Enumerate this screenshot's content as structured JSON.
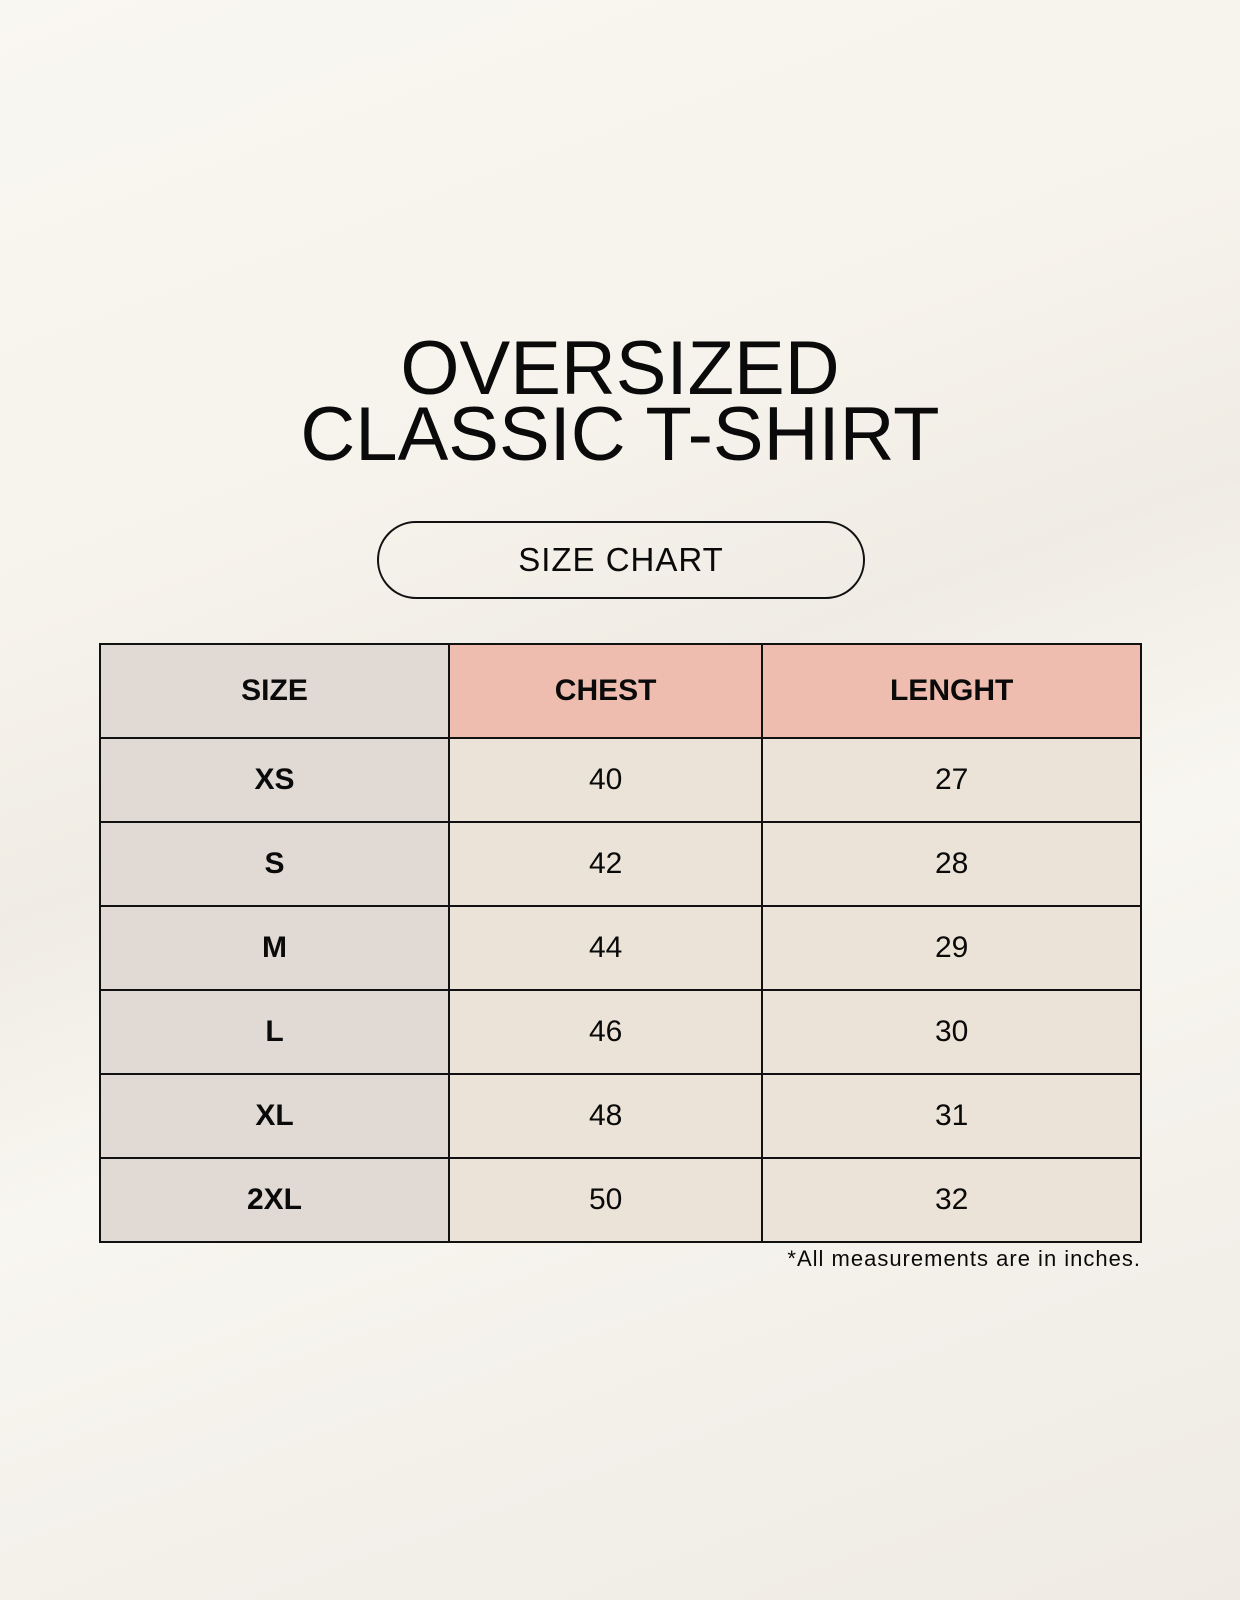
{
  "title": {
    "line1": "OVERSIZED",
    "line2": "CLASSIC T-SHIRT"
  },
  "badge": "SIZE CHART",
  "table": {
    "headers": [
      "SIZE",
      "CHEST",
      "LENGHT"
    ],
    "rows": [
      [
        "XS",
        "40",
        "27"
      ],
      [
        "S",
        "42",
        "28"
      ],
      [
        "M",
        "44",
        "29"
      ],
      [
        "L",
        "46",
        "30"
      ],
      [
        "XL",
        "48",
        "31"
      ],
      [
        "2XL",
        "50",
        "32"
      ]
    ]
  },
  "footnote": "*All measurements are in inches.",
  "colors": {
    "header_accent": "#efbdb0",
    "size_column": "#e1d9d3",
    "value_cells": "#ebe3d8"
  }
}
